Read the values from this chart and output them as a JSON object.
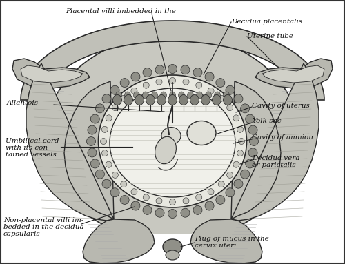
{
  "bg_color": "#ffffff",
  "line_color": "#2a2a2a",
  "fill_light": "#d8d8d0",
  "fill_medium": "#b8b8b0",
  "fill_dark": "#888880",
  "labels": {
    "placental_villi": "Placental villi imbedded in the",
    "decidua_placentalis": "Decidua placentalis",
    "uterine_tube": "Uterine tube",
    "allantois": "Allantois",
    "cavity_uterus": "Cavity of uterus",
    "yolk_sac": "Yolk-sac",
    "cavity_amnion": "Cavity of amnion",
    "decidua_vera": "Decidua vera",
    "or_parictalis": "or parictalis",
    "umbilical_cord_1": "Umbilical cord",
    "umbilical_cord_2": "with its con-",
    "umbilical_cord_3": "tained vessels",
    "non_placental_1": "Non-placental villi im-",
    "non_placental_2": "bedded in the decidua",
    "non_placental_3": "capsularis",
    "plug_mucus_1": "Plug of mucus in the",
    "plug_mucus_2": "cervix uteri"
  },
  "figsize": [
    5.0,
    3.83
  ],
  "dpi": 100
}
